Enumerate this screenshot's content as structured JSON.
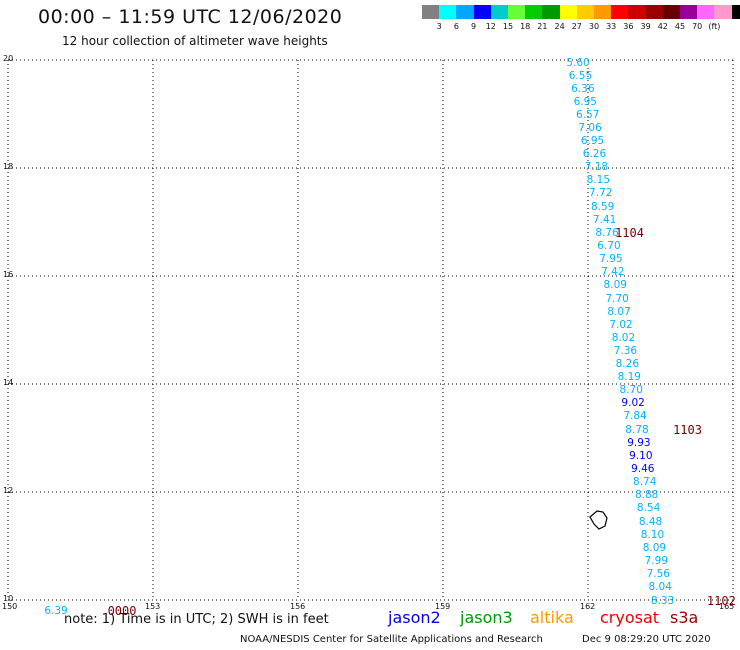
{
  "header": {
    "title": "00:00 – 11:59 UTC 12/06/2020",
    "subtitle": "12 hour collection of altimeter wave heights"
  },
  "color_scale": {
    "colors": [
      "#808080",
      "#00ffff",
      "#00a8ff",
      "#0000ff",
      "#00cccc",
      "#66ff33",
      "#00cc00",
      "#009900",
      "#ffff00",
      "#ffcc00",
      "#ff9900",
      "#ff0000",
      "#cc0000",
      "#990000",
      "#660000",
      "#990099",
      "#ff66ff",
      "#ff99cc",
      "#000000"
    ],
    "labels": [
      "3",
      "6",
      "9",
      "12",
      "15",
      "18",
      "21",
      "24",
      "27",
      "30",
      "33",
      "36",
      "39",
      "42",
      "45",
      "70",
      "(ft)"
    ]
  },
  "map": {
    "lon_ticks": [
      "150",
      "153",
      "156",
      "159",
      "162",
      "165"
    ],
    "lat_ticks": [
      "10",
      "12",
      "14",
      "16",
      "18",
      "20"
    ],
    "lon_range": [
      150,
      165
    ],
    "lat_range": [
      10,
      20
    ]
  },
  "swh_values": [
    {
      "lon": 161.8,
      "lat": 19.95,
      "v": "5.60",
      "c": "#00b4ff"
    },
    {
      "lon": 161.85,
      "lat": 19.7,
      "v": "6.55",
      "c": "#00b4ff"
    },
    {
      "lon": 161.9,
      "lat": 19.47,
      "v": "6.36",
      "c": "#00b4ff"
    },
    {
      "lon": 161.95,
      "lat": 19.23,
      "v": "6.95",
      "c": "#00b4ff"
    },
    {
      "lon": 162.0,
      "lat": 18.99,
      "v": "6.57",
      "c": "#00b4ff"
    },
    {
      "lon": 162.05,
      "lat": 18.74,
      "v": "7.06",
      "c": "#00b4ff"
    },
    {
      "lon": 162.1,
      "lat": 18.5,
      "v": "6.95",
      "c": "#00b4ff"
    },
    {
      "lon": 162.14,
      "lat": 18.26,
      "v": "6.26",
      "c": "#00b4ff"
    },
    {
      "lon": 162.18,
      "lat": 18.02,
      "v": "7.18",
      "c": "#00b4ff"
    },
    {
      "lon": 162.22,
      "lat": 17.77,
      "v": "8.15",
      "c": "#00b4ff"
    },
    {
      "lon": 162.27,
      "lat": 17.53,
      "v": "7.72",
      "c": "#00b4ff"
    },
    {
      "lon": 162.31,
      "lat": 17.28,
      "v": "8.59",
      "c": "#00b4ff"
    },
    {
      "lon": 162.35,
      "lat": 17.04,
      "v": "7.41",
      "c": "#00b4ff"
    },
    {
      "lon": 162.4,
      "lat": 16.8,
      "v": "8.76",
      "c": "#00b4ff"
    },
    {
      "lon": 162.44,
      "lat": 16.56,
      "v": "6.70",
      "c": "#00b4ff"
    },
    {
      "lon": 162.48,
      "lat": 16.31,
      "v": "7.95",
      "c": "#00b4ff"
    },
    {
      "lon": 162.52,
      "lat": 16.07,
      "v": "7.42",
      "c": "#00b4ff"
    },
    {
      "lon": 162.57,
      "lat": 15.83,
      "v": "8.09",
      "c": "#00b4ff"
    },
    {
      "lon": 162.61,
      "lat": 15.58,
      "v": "7.70",
      "c": "#00b4ff"
    },
    {
      "lon": 162.65,
      "lat": 15.34,
      "v": "8.07",
      "c": "#00b4ff"
    },
    {
      "lon": 162.69,
      "lat": 15.1,
      "v": "7.02",
      "c": "#00b4ff"
    },
    {
      "lon": 162.74,
      "lat": 14.85,
      "v": "8.02",
      "c": "#00b4ff"
    },
    {
      "lon": 162.78,
      "lat": 14.61,
      "v": "7.36",
      "c": "#00b4ff"
    },
    {
      "lon": 162.82,
      "lat": 14.37,
      "v": "8.26",
      "c": "#00b4ff"
    },
    {
      "lon": 162.86,
      "lat": 14.13,
      "v": "8.19",
      "c": "#00b4ff"
    },
    {
      "lon": 162.9,
      "lat": 13.88,
      "v": "8.70",
      "c": "#00b4ff"
    },
    {
      "lon": 162.94,
      "lat": 13.64,
      "v": "9.02",
      "c": "#0000ff"
    },
    {
      "lon": 162.98,
      "lat": 13.4,
      "v": "7.84",
      "c": "#00b4ff"
    },
    {
      "lon": 163.02,
      "lat": 13.15,
      "v": "8.78",
      "c": "#00b4ff"
    },
    {
      "lon": 163.06,
      "lat": 12.91,
      "v": "9.93",
      "c": "#0000ff"
    },
    {
      "lon": 163.1,
      "lat": 12.67,
      "v": "9.10",
      "c": "#0000ff"
    },
    {
      "lon": 163.14,
      "lat": 12.43,
      "v": "9.46",
      "c": "#0000ff"
    },
    {
      "lon": 163.18,
      "lat": 12.18,
      "v": "8.74",
      "c": "#00b4ff"
    },
    {
      "lon": 163.22,
      "lat": 11.94,
      "v": "8.88",
      "c": "#00b4ff"
    },
    {
      "lon": 163.26,
      "lat": 11.7,
      "v": "8.54",
      "c": "#00b4ff"
    },
    {
      "lon": 163.3,
      "lat": 11.45,
      "v": "8.48",
      "c": "#00b4ff"
    },
    {
      "lon": 163.34,
      "lat": 11.21,
      "v": "8.10",
      "c": "#00b4ff"
    },
    {
      "lon": 163.38,
      "lat": 10.97,
      "v": "8.09",
      "c": "#00b4ff"
    },
    {
      "lon": 163.42,
      "lat": 10.72,
      "v": "7.99",
      "c": "#00b4ff"
    },
    {
      "lon": 163.46,
      "lat": 10.48,
      "v": "7.56",
      "c": "#00b4ff"
    },
    {
      "lon": 163.5,
      "lat": 10.24,
      "v": "8.04",
      "c": "#00b4ff"
    },
    {
      "lon": 163.55,
      "lat": 9.99,
      "v": "8.33",
      "c": "#00b4ff"
    },
    {
      "lon": 151.0,
      "lat": 9.79,
      "v": "6.39",
      "c": "#00b4ff"
    }
  ],
  "pass_labels": [
    {
      "lon": 162.85,
      "lat": 16.8,
      "v": "1104"
    },
    {
      "lon": 164.05,
      "lat": 13.15,
      "v": "1103"
    },
    {
      "lon": 164.75,
      "lat": 9.99,
      "v": "1102"
    },
    {
      "lon": 152.35,
      "lat": 9.79,
      "v": "0000"
    }
  ],
  "footer": {
    "note": "note: 1) Time is in UTC; 2) SWH is in feet",
    "satellites": [
      {
        "name": "jason2",
        "color": "#0000ee"
      },
      {
        "name": "jason3",
        "color": "#009900"
      },
      {
        "name": "altika",
        "color": "#ff9900"
      },
      {
        "name": "cryosat",
        "color": "#ee0000"
      },
      {
        "name": "s3a",
        "color": "#990000"
      }
    ],
    "credit": "NOAA/NESDIS Center for Satellite Applications and Research",
    "timestamp": "Dec  9 08:29:20 UTC 2020"
  }
}
